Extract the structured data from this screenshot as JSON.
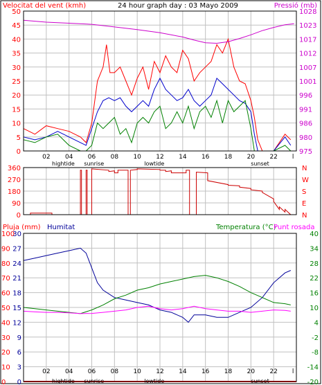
{
  "title": "24 hour graph day : 03 Mayo 2009",
  "colors": {
    "wind": "#ff0000",
    "gust": "#ff0000",
    "avg_wind": "#0000cc",
    "wind_low": "#008000",
    "pressure": "#cc00cc",
    "direction": "#cc0000",
    "humidity": "#000099",
    "temperature": "#008000",
    "dewpoint": "#ff00ff",
    "rain": "#ff0000",
    "grid": "#c0c0c0"
  },
  "x_ticks": [
    "02",
    "04",
    "06",
    "08",
    "10",
    "12",
    "14",
    "16",
    "18",
    "20",
    "22",
    "l"
  ],
  "markers": [
    {
      "label": "hightide",
      "hour": 3.5
    },
    {
      "label": "sunrise",
      "hour": 6.2
    },
    {
      "label": "lowtide",
      "hour": 11.5
    },
    {
      "label": "sunset",
      "hour": 20.8
    }
  ],
  "panels": {
    "wind": {
      "left_label": "Velocitat del vent (kmh)",
      "right_label": "Pressió (mb)",
      "left_ticks": [
        "0",
        "5",
        "10",
        "15",
        "20",
        "25",
        "30",
        "35",
        "40",
        "45",
        "50"
      ],
      "right_ticks": [
        "975",
        "980",
        "986",
        "991",
        "996",
        "1001",
        "1007",
        "1012",
        "1017",
        "1023",
        "1028"
      ]
    },
    "direction": {
      "left_ticks": [
        "0",
        "90",
        "180",
        "270",
        "360"
      ],
      "right_ticks": [
        "N",
        "E",
        "S",
        "W",
        "N"
      ]
    },
    "temp": {
      "label_rain": "Pluja (mm)",
      "label_hum": "Humitat",
      "label_temp": "Temperatura (°C)",
      "label_dew": "Punt rosada",
      "rain_ticks": [
        "0",
        "10",
        "20",
        "30",
        "40",
        "50",
        "60",
        "70",
        "80",
        "90",
        "100"
      ],
      "hum_ticks": [
        "0",
        "3",
        "6",
        "9",
        "12",
        "15",
        "18",
        "21",
        "24",
        "27",
        "30"
      ],
      "temp_ticks": [
        "-20",
        "-14",
        "-8",
        "-2",
        "4",
        "10",
        "16",
        "22",
        "28",
        "34",
        "40"
      ]
    }
  },
  "chart_data": [
    {
      "type": "line",
      "title": "24 hour graph day : 03 Mayo 2009",
      "ylabel": "Velocitat del vent (kmh)",
      "y2label": "Pressió (mb)",
      "xlim": [
        0,
        24
      ],
      "ylim": [
        0,
        50
      ],
      "y2lim": [
        975,
        1028
      ],
      "series": [
        {
          "role": "gust",
          "x": [
            0,
            1,
            2,
            3,
            4,
            5,
            5.5,
            6,
            6.5,
            7,
            7.3,
            7.6,
            8,
            8.5,
            9,
            9.5,
            10,
            10.5,
            11,
            11.5,
            12,
            12.5,
            13,
            13.5,
            14,
            14.5,
            15,
            15.5,
            16,
            16.5,
            17,
            17.5,
            18,
            18.5,
            19,
            19.5,
            20,
            20.3,
            20.6,
            21,
            22,
            23,
            23.5
          ],
          "y": [
            8,
            6,
            9,
            8,
            7,
            5,
            3,
            10,
            25,
            30,
            38,
            28,
            28,
            30,
            25,
            20,
            26,
            30,
            22,
            32,
            28,
            34,
            30,
            28,
            36,
            33,
            25,
            28,
            30,
            32,
            38,
            35,
            40,
            30,
            25,
            24,
            18,
            12,
            4,
            0,
            0,
            6,
            4
          ]
        },
        {
          "role": "avg_wind",
          "x": [
            0,
            1,
            2,
            3,
            4,
            5,
            5.5,
            6,
            6.5,
            7,
            7.5,
            8,
            8.5,
            9,
            9.5,
            10,
            10.5,
            11,
            11.5,
            12,
            12.5,
            13,
            13.5,
            14,
            14.5,
            15,
            15.5,
            16,
            16.5,
            17,
            17.5,
            18,
            18.5,
            19,
            19.5,
            20,
            20.3,
            20.6,
            21,
            22,
            23,
            23.5
          ],
          "y": [
            5,
            4,
            5,
            7,
            5,
            3,
            2,
            8,
            14,
            18,
            19,
            18,
            19,
            16,
            14,
            16,
            18,
            16,
            22,
            26,
            22,
            20,
            18,
            19,
            22,
            18,
            16,
            18,
            20,
            26,
            24,
            22,
            20,
            18,
            17,
            14,
            6,
            0,
            0,
            0,
            5,
            2
          ]
        },
        {
          "role": "wind_low",
          "x": [
            0,
            1,
            2,
            3,
            4,
            5,
            5.5,
            6,
            6.5,
            7,
            7.5,
            8,
            8.5,
            9,
            9.5,
            10,
            10.5,
            11,
            11.5,
            12,
            12.5,
            13,
            13.5,
            14,
            14.5,
            15,
            15.5,
            16,
            16.5,
            17,
            17.5,
            18,
            18.5,
            19,
            19.5,
            20,
            20.3,
            20.6,
            21,
            22,
            23,
            23.5
          ],
          "y": [
            4,
            3,
            5,
            6,
            2,
            0,
            0,
            2,
            10,
            8,
            10,
            12,
            6,
            8,
            3,
            10,
            12,
            10,
            14,
            16,
            8,
            10,
            14,
            10,
            16,
            8,
            14,
            16,
            12,
            18,
            10,
            18,
            14,
            16,
            18,
            8,
            0,
            0,
            0,
            0,
            2,
            0
          ]
        },
        {
          "name": "Pressió (mb)",
          "axis": "right",
          "x": [
            0,
            2,
            4,
            6,
            8,
            10,
            12,
            14,
            15,
            16,
            17,
            18,
            19,
            20,
            21,
            22,
            23,
            23.8
          ],
          "y": [
            1024.5,
            1023.8,
            1023.4,
            1023.0,
            1022.0,
            1021.0,
            1019.8,
            1018.2,
            1017.0,
            1016.0,
            1015.8,
            1016.4,
            1017.6,
            1019.0,
            1020.6,
            1021.8,
            1022.8,
            1023.2
          ]
        }
      ]
    },
    {
      "type": "line",
      "xlim": [
        0,
        24
      ],
      "ylim": [
        0,
        360
      ],
      "series": [
        {
          "role": "direction",
          "x": [
            0,
            0.6,
            0.6,
            2.5,
            2.5,
            5.0,
            5.0,
            5.1,
            5.1,
            5.5,
            5.5,
            5.6,
            5.6,
            6.0,
            6.0,
            7.5,
            7.5,
            8.0,
            8.0,
            8.3,
            8.3,
            9.2,
            9.2,
            9.4,
            9.4,
            10.0,
            10.0,
            12.0,
            12.0,
            12.5,
            12.5,
            13.0,
            13.0,
            14.3,
            14.3,
            14.6,
            14.6,
            15.2,
            15.2,
            16.2,
            16.2,
            18.0,
            18.0,
            19.0,
            19.0,
            20.0,
            20.0,
            21.0,
            21.0,
            22.0,
            22.0,
            22.5,
            22.5,
            23.0,
            23.0,
            23.5
          ],
          "y": [
            0,
            0,
            12,
            12,
            0,
            0,
            340,
            340,
            0,
            0,
            340,
            340,
            0,
            0,
            350,
            340,
            330,
            335,
            320,
            320,
            340,
            340,
            0,
            0,
            340,
            345,
            350,
            345,
            340,
            340,
            330,
            335,
            320,
            320,
            340,
            340,
            0,
            0,
            325,
            320,
            260,
            230,
            225,
            220,
            210,
            200,
            190,
            180,
            170,
            120,
            100,
            40,
            60,
            20,
            40,
            0
          ]
        }
      ]
    },
    {
      "type": "line",
      "xlim": [
        0,
        24
      ],
      "ylabel": "Pluja (mm)",
      "y2label": "Temperatura (°C)",
      "ylim": [
        0,
        100
      ],
      "y2lim": [
        -20,
        40
      ],
      "series": [
        {
          "name": "Humitat",
          "axis": "humidity",
          "x": [
            0,
            1,
            2,
            3,
            4,
            5,
            5.5,
            6,
            6.5,
            7,
            8,
            9,
            10,
            11,
            12,
            13,
            14,
            14.5,
            15,
            16,
            17,
            18,
            19,
            20,
            21,
            22,
            23,
            23.5
          ],
          "y": [
            24.5,
            25,
            25.5,
            26,
            26.5,
            27,
            26,
            23,
            20,
            18.5,
            17,
            16.5,
            16,
            15.5,
            14.5,
            14,
            13,
            12,
            13.5,
            13.5,
            13,
            13,
            14,
            15,
            17,
            20,
            22,
            22.5
          ]
        },
        {
          "name": "Temperatura (°C)",
          "axis": "temp",
          "x": [
            0,
            1,
            2,
            3,
            4,
            5,
            6,
            7,
            8,
            9,
            10,
            11,
            12,
            13,
            14,
            15,
            16,
            17,
            18,
            19,
            20,
            21,
            22,
            23,
            23.5
          ],
          "y": [
            10,
            9.5,
            9,
            8.5,
            8,
            7.5,
            9,
            11,
            13.5,
            15,
            17,
            18,
            19.5,
            20.5,
            21.5,
            22.5,
            23,
            22,
            20.5,
            18.5,
            16,
            14,
            12,
            11.5,
            11
          ]
        },
        {
          "name": "Punt rosada",
          "axis": "temp",
          "x": [
            0,
            1,
            2,
            3,
            4,
            5,
            6,
            7,
            8,
            9,
            10,
            11,
            12,
            13,
            14,
            15,
            16,
            17,
            18,
            19,
            20,
            21,
            22,
            23,
            23.5
          ],
          "y": [
            8.5,
            8.2,
            8.0,
            8.0,
            7.8,
            7.5,
            7.6,
            8.0,
            8.5,
            9,
            10,
            10.5,
            9.5,
            9,
            9.5,
            10.5,
            9.5,
            9,
            8.5,
            8.5,
            8,
            8.5,
            9,
            8.8,
            8.5
          ]
        },
        {
          "name": "Pluja (mm)",
          "axis": "rain",
          "x": [
            0,
            24
          ],
          "y": [
            0,
            0
          ]
        }
      ]
    }
  ]
}
